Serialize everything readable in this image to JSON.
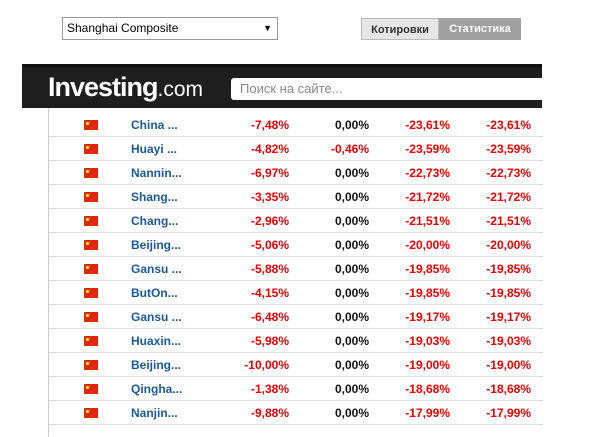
{
  "selector": {
    "value": "Shanghai Composite"
  },
  "tabs": [
    "Котировки",
    "Статистика"
  ],
  "header": {
    "logo": "Investing",
    "logo_suffix": ".com",
    "search_placeholder": "Поиск на сайте..."
  },
  "table": {
    "rows": [
      [
        "China ...",
        "-7,48%",
        "0,00%",
        "-23,61%",
        "-23,61%"
      ],
      [
        "Huayi ...",
        "-4,82%",
        "-0,46%",
        "-23,59%",
        "-23,59%"
      ],
      [
        "Nannin...",
        "-6,97%",
        "0,00%",
        "-22,73%",
        "-22,73%"
      ],
      [
        "Shang...",
        "-3,35%",
        "0,00%",
        "-21,72%",
        "-21,72%"
      ],
      [
        "Chang...",
        "-2,96%",
        "0,00%",
        "-21,51%",
        "-21,51%"
      ],
      [
        "Beijing...",
        "-5,06%",
        "0,00%",
        "-20,00%",
        "-20,00%"
      ],
      [
        "Gansu ...",
        "-5,88%",
        "0,00%",
        "-19,85%",
        "-19,85%"
      ],
      [
        "ButOn...",
        "-4,15%",
        "0,00%",
        "-19,85%",
        "-19,85%"
      ],
      [
        "Gansu ...",
        "-6,48%",
        "0,00%",
        "-19,17%",
        "-19,17%"
      ],
      [
        "Huaxin...",
        "-5,98%",
        "0,00%",
        "-19,03%",
        "-19,03%"
      ],
      [
        "Beijing...",
        "-10,00%",
        "0,00%",
        "-19,00%",
        "-19,00%"
      ],
      [
        "Qingha...",
        "-1,38%",
        "0,00%",
        "-18,68%",
        "-18,68%"
      ],
      [
        "Nanjin...",
        "-9,88%",
        "0,00%",
        "-17,99%",
        "-17,99%"
      ]
    ]
  }
}
